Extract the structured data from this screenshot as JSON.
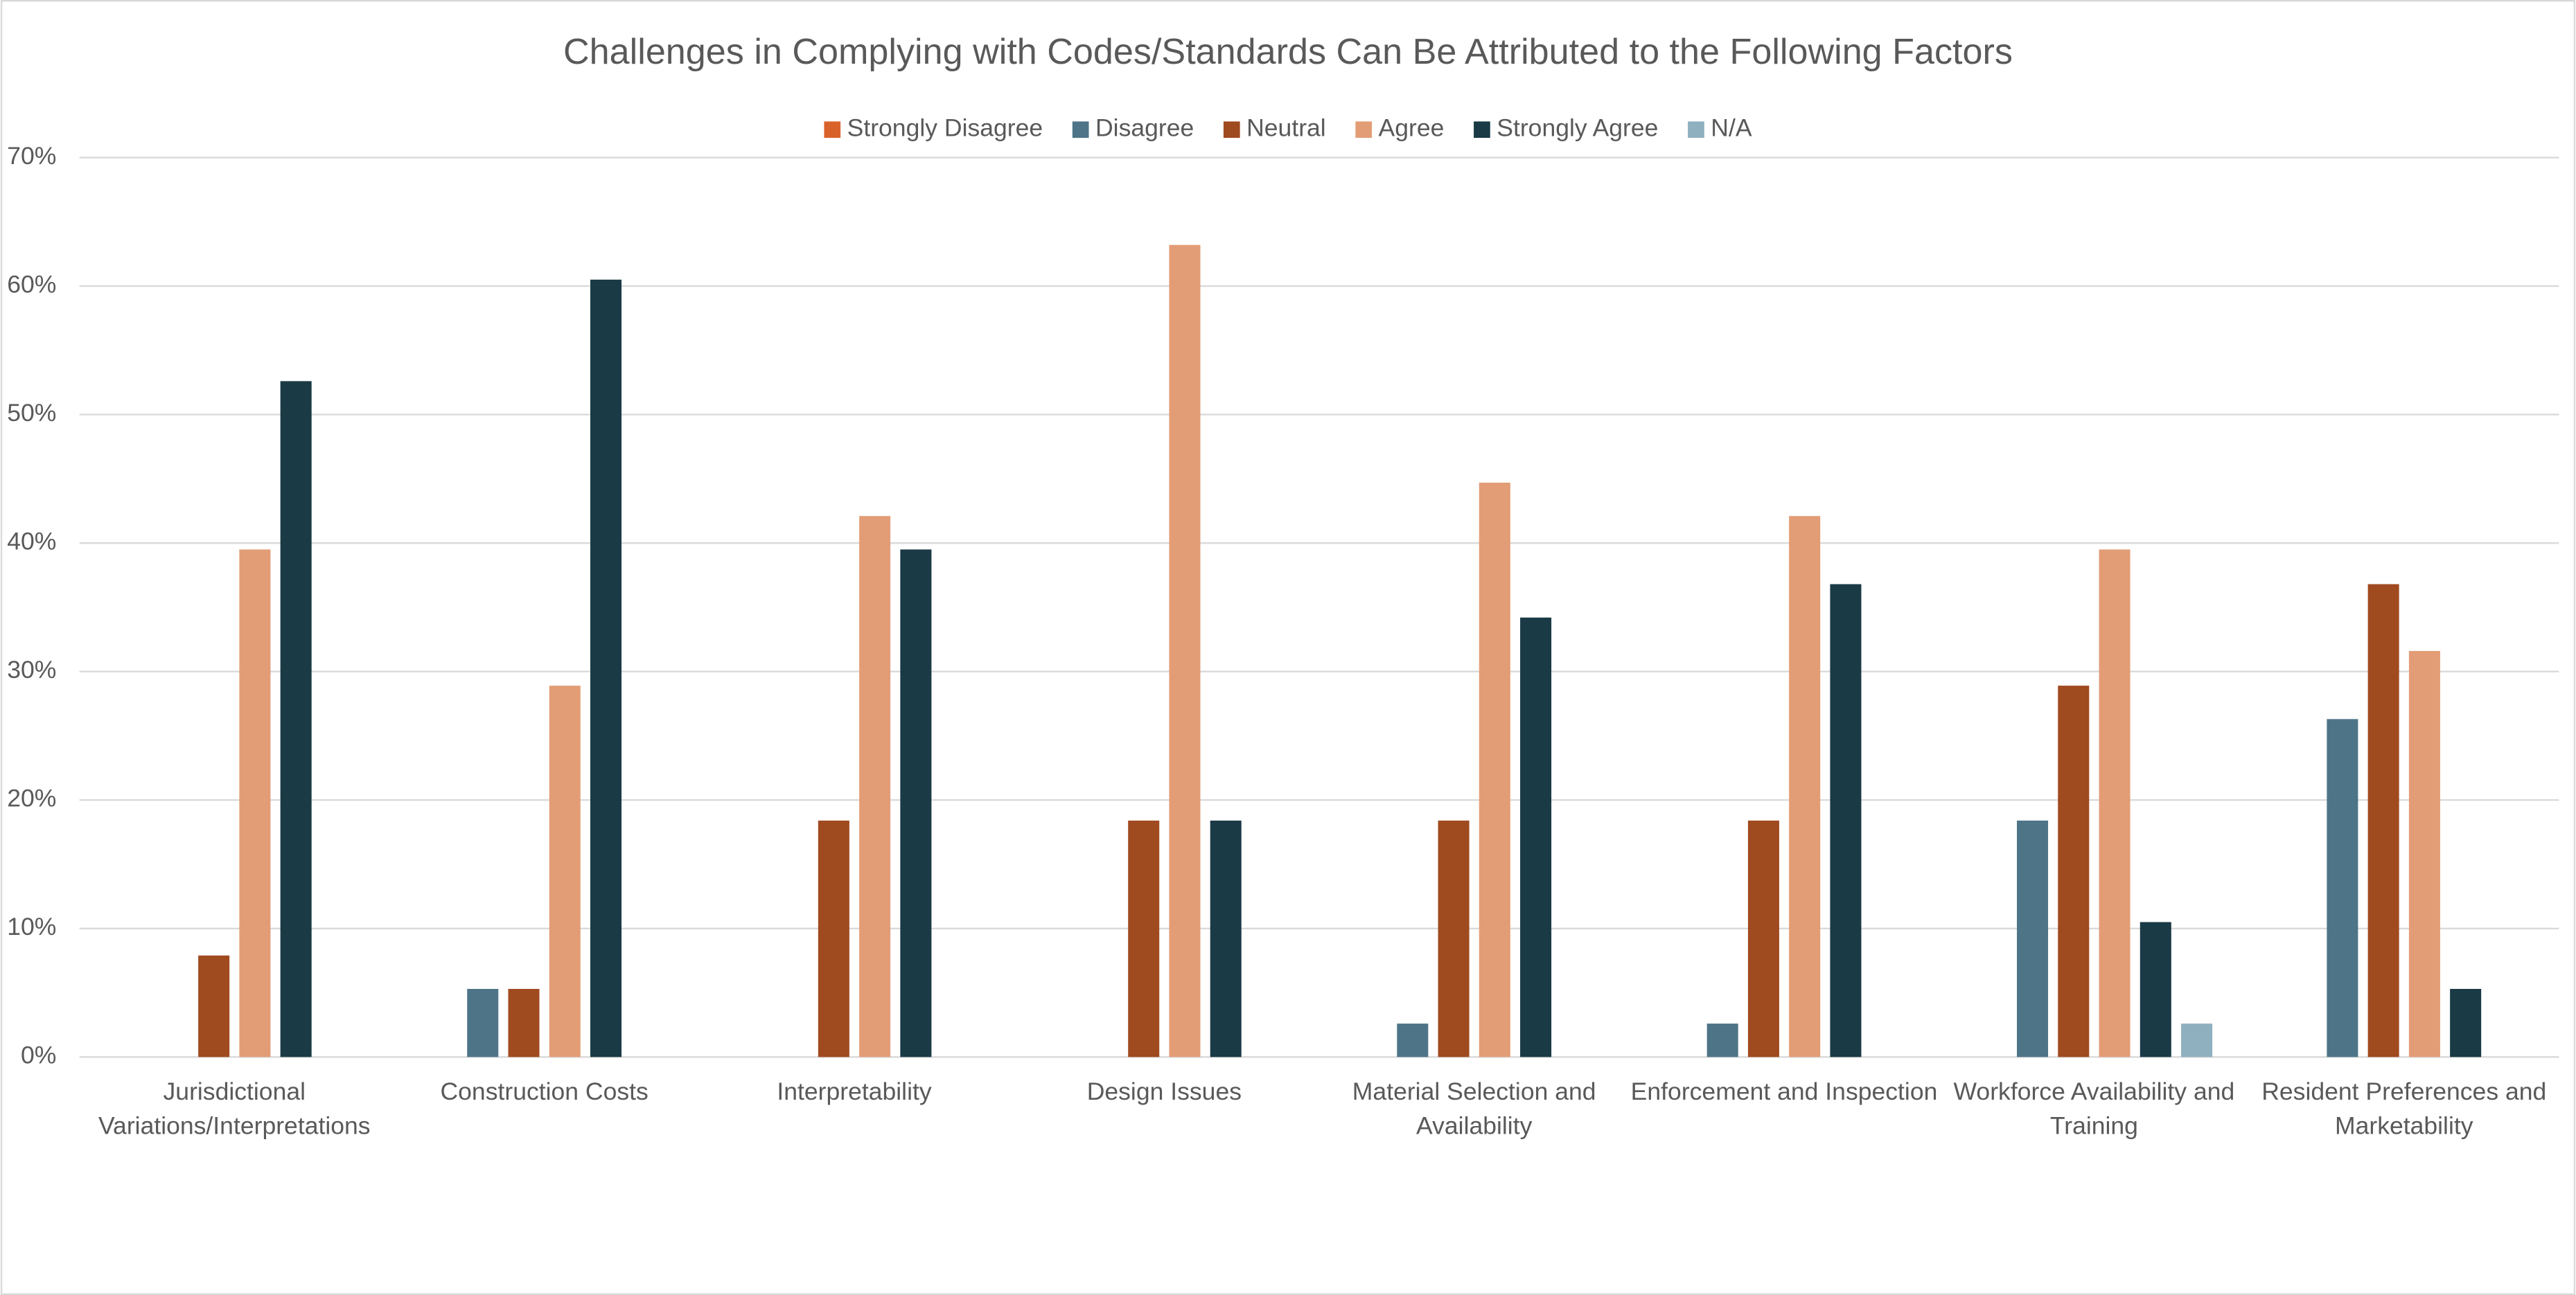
{
  "chart_data": {
    "type": "bar",
    "title": "Challenges in Complying with Codes/Standards Can Be Attributed to the Following Factors",
    "categories": [
      "Jurisdictional Variations/Interpretations",
      "Construction Costs",
      "Interpretability",
      "Design Issues",
      "Material Selection and Availability",
      "Enforcement and Inspection",
      "Workforce Availability and Training",
      "Resident Preferences and Marketability"
    ],
    "series": [
      {
        "name": "Strongly Disagree",
        "color": "#d9622b",
        "values": [
          0,
          0,
          0,
          0,
          0,
          0,
          0,
          0
        ]
      },
      {
        "name": "Disagree",
        "color": "#4e7487",
        "values": [
          0,
          5.3,
          0,
          0,
          2.6,
          2.6,
          18.4,
          26.3
        ]
      },
      {
        "name": "Neutral",
        "color": "#a04a20",
        "values": [
          7.9,
          5.3,
          18.4,
          18.4,
          18.4,
          18.4,
          28.9,
          36.8
        ]
      },
      {
        "name": "Agree",
        "color": "#e29d76",
        "values": [
          39.5,
          28.9,
          42.1,
          63.2,
          44.7,
          42.1,
          39.5,
          31.6
        ]
      },
      {
        "name": "Strongly Agree",
        "color": "#1a3a45",
        "values": [
          52.6,
          60.5,
          39.5,
          18.4,
          34.2,
          36.8,
          10.5,
          5.3
        ]
      },
      {
        "name": "N/A",
        "color": "#8fb0bf",
        "values": [
          0,
          0,
          0,
          0,
          0,
          0,
          2.6,
          0
        ]
      }
    ],
    "ylim": [
      0,
      70
    ],
    "yticks": [
      {
        "value": 0,
        "label": "0%"
      },
      {
        "value": 10,
        "label": "10%"
      },
      {
        "value": 20,
        "label": "20%"
      },
      {
        "value": 30,
        "label": "30%"
      },
      {
        "value": 40,
        "label": "40%"
      },
      {
        "value": 50,
        "label": "50%"
      },
      {
        "value": 60,
        "label": "60%"
      },
      {
        "value": 70,
        "label": "70%"
      }
    ],
    "grid": true,
    "legend": "top"
  }
}
